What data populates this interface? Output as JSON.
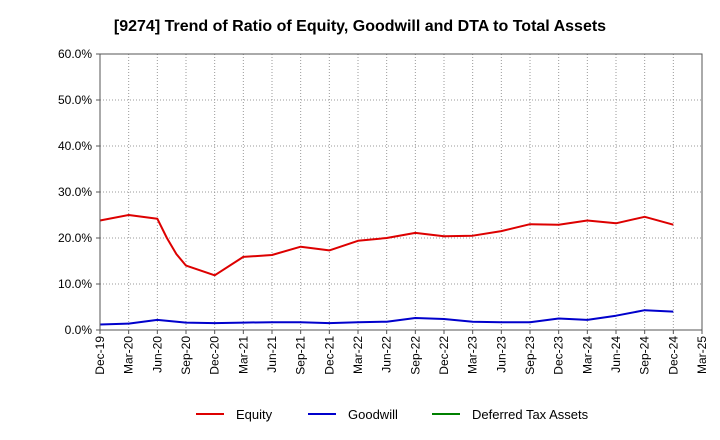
{
  "chart_data": {
    "type": "line",
    "title": "[9274]  Trend of Ratio of Equity, Goodwill and DTA to Total Assets",
    "xlabel": "",
    "ylabel": "",
    "ylim": [
      0,
      60
    ],
    "y_ticks": [
      0,
      10,
      20,
      30,
      40,
      50,
      60
    ],
    "y_tick_labels": [
      "0.0%",
      "10.0%",
      "20.0%",
      "30.0%",
      "40.0%",
      "50.0%",
      "60.0%"
    ],
    "x_tick_labels": [
      "Dec-19",
      "Mar-20",
      "Jun-20",
      "Sep-20",
      "Dec-20",
      "Mar-21",
      "Jun-21",
      "Sep-21",
      "Dec-21",
      "Mar-22",
      "Jun-22",
      "Sep-22",
      "Dec-22",
      "Mar-23",
      "Jun-23",
      "Sep-23",
      "Dec-23",
      "Mar-24",
      "Jun-24",
      "Sep-24",
      "Dec-24",
      "Mar-25"
    ],
    "x_months_range": [
      0,
      63
    ],
    "grid": true,
    "legend_position": "bottom",
    "series": [
      {
        "name": "Equity",
        "color": "#dd0000",
        "points": [
          [
            0,
            23.8
          ],
          [
            3,
            25.0
          ],
          [
            6,
            24.2
          ],
          [
            7,
            20.0
          ],
          [
            8,
            16.5
          ],
          [
            9,
            14.0
          ],
          [
            12,
            11.9
          ],
          [
            15,
            15.9
          ],
          [
            18,
            16.3
          ],
          [
            21,
            18.1
          ],
          [
            24,
            17.3
          ],
          [
            27,
            19.4
          ],
          [
            30,
            20.0
          ],
          [
            33,
            21.1
          ],
          [
            36,
            20.4
          ],
          [
            39,
            20.5
          ],
          [
            42,
            21.5
          ],
          [
            45,
            23.0
          ],
          [
            48,
            22.9
          ],
          [
            51,
            23.8
          ],
          [
            54,
            23.2
          ],
          [
            57,
            24.6
          ],
          [
            60,
            22.9
          ]
        ]
      },
      {
        "name": "Goodwill",
        "color": "#0000cc",
        "points": [
          [
            0,
            1.2
          ],
          [
            3,
            1.4
          ],
          [
            6,
            2.2
          ],
          [
            9,
            1.6
          ],
          [
            12,
            1.5
          ],
          [
            15,
            1.6
          ],
          [
            18,
            1.7
          ],
          [
            21,
            1.7
          ],
          [
            24,
            1.5
          ],
          [
            27,
            1.7
          ],
          [
            30,
            1.8
          ],
          [
            33,
            2.6
          ],
          [
            36,
            2.4
          ],
          [
            39,
            1.8
          ],
          [
            42,
            1.7
          ],
          [
            45,
            1.7
          ],
          [
            48,
            2.5
          ],
          [
            51,
            2.2
          ],
          [
            54,
            3.1
          ],
          [
            57,
            4.3
          ],
          [
            60,
            4.0
          ]
        ]
      },
      {
        "name": "Deferred Tax Assets",
        "color": "#008000",
        "points": []
      }
    ]
  }
}
